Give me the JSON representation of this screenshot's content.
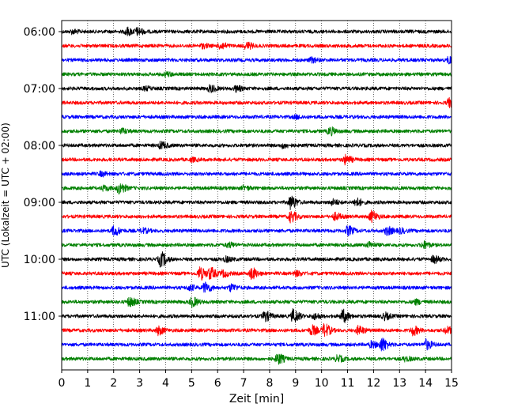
{
  "chart_data": {
    "type": "line",
    "subtype": "helicorder",
    "xlabel": "Zeit  [min]",
    "ylabel": "UTC (Lokalzeit = UTC + 02:00)",
    "x_ticks": [
      0,
      1,
      2,
      3,
      4,
      5,
      6,
      7,
      8,
      9,
      10,
      11,
      12,
      13,
      14,
      15
    ],
    "xlim": [
      0,
      15
    ],
    "grid": "vertical dotted",
    "y_tick_labels": [
      "06:00",
      "07:00",
      "08:00",
      "09:00",
      "10:00",
      "11:00"
    ],
    "trace_minutes": 15,
    "trace_colors": [
      "#000000",
      "#ff0000",
      "#0000ff",
      "#008000"
    ],
    "traces": [
      {
        "start": "06:00",
        "color": "#000000",
        "events": [
          [
            2.5,
            0.5
          ],
          [
            2.9,
            0.45
          ],
          [
            0.4,
            0.25
          ]
        ]
      },
      {
        "start": "06:15",
        "color": "#ff0000",
        "events": [
          [
            6.1,
            0.45
          ],
          [
            7.1,
            0.45
          ],
          [
            5.4,
            0.25
          ]
        ]
      },
      {
        "start": "06:30",
        "color": "#0000ff",
        "events": [
          [
            9.6,
            0.3
          ],
          [
            14.9,
            0.5
          ]
        ]
      },
      {
        "start": "06:45",
        "color": "#008000",
        "events": [
          [
            4.0,
            0.25
          ]
        ]
      },
      {
        "start": "07:00",
        "color": "#000000",
        "events": [
          [
            5.7,
            0.45
          ],
          [
            6.7,
            0.35
          ],
          [
            3.2,
            0.2
          ]
        ]
      },
      {
        "start": "07:15",
        "color": "#ff0000",
        "events": [
          [
            14.9,
            0.55
          ]
        ]
      },
      {
        "start": "07:30",
        "color": "#0000ff",
        "events": [
          [
            9.0,
            0.2
          ]
        ]
      },
      {
        "start": "07:45",
        "color": "#008000",
        "events": [
          [
            10.3,
            0.5
          ],
          [
            2.3,
            0.3
          ]
        ]
      },
      {
        "start": "08:00",
        "color": "#000000",
        "events": [
          [
            3.8,
            0.45
          ],
          [
            8.5,
            0.3
          ]
        ]
      },
      {
        "start": "08:15",
        "color": "#ff0000",
        "events": [
          [
            10.9,
            0.6
          ],
          [
            5.0,
            0.2
          ]
        ]
      },
      {
        "start": "08:30",
        "color": "#0000ff",
        "events": [
          [
            1.5,
            0.25
          ]
        ]
      },
      {
        "start": "08:45",
        "color": "#008000",
        "events": [
          [
            2.2,
            0.8
          ],
          [
            1.6,
            0.3
          ],
          [
            7.0,
            0.25
          ]
        ]
      },
      {
        "start": "09:00",
        "color": "#000000",
        "events": [
          [
            8.8,
            0.9
          ],
          [
            11.3,
            0.55
          ],
          [
            10.4,
            0.35
          ]
        ]
      },
      {
        "start": "09:15",
        "color": "#ff0000",
        "events": [
          [
            8.8,
            0.75
          ],
          [
            11.9,
            0.75
          ],
          [
            10.5,
            0.45
          ]
        ]
      },
      {
        "start": "09:30",
        "color": "#0000ff",
        "events": [
          [
            2.0,
            0.6
          ],
          [
            11.0,
            0.6
          ],
          [
            12.5,
            0.55
          ],
          [
            13.0,
            0.3
          ],
          [
            3.1,
            0.3
          ]
        ]
      },
      {
        "start": "09:45",
        "color": "#008000",
        "events": [
          [
            13.9,
            0.45
          ],
          [
            11.8,
            0.35
          ],
          [
            6.4,
            0.3
          ]
        ]
      },
      {
        "start": "10:00",
        "color": "#000000",
        "events": [
          [
            3.8,
            1.0
          ],
          [
            14.3,
            0.45
          ],
          [
            6.3,
            0.3
          ]
        ]
      },
      {
        "start": "10:15",
        "color": "#ff0000",
        "events": [
          [
            5.3,
            0.85
          ],
          [
            5.7,
            0.75
          ],
          [
            7.3,
            0.75
          ],
          [
            6.2,
            0.4
          ],
          [
            9.0,
            0.3
          ]
        ]
      },
      {
        "start": "10:30",
        "color": "#0000ff",
        "events": [
          [
            5.5,
            0.7
          ],
          [
            6.5,
            0.45
          ],
          [
            4.9,
            0.35
          ]
        ]
      },
      {
        "start": "10:45",
        "color": "#008000",
        "events": [
          [
            2.6,
            0.6
          ],
          [
            5.0,
            0.6
          ],
          [
            13.6,
            0.3
          ]
        ]
      },
      {
        "start": "11:00",
        "color": "#000000",
        "events": [
          [
            7.8,
            0.65
          ],
          [
            8.9,
            0.9
          ],
          [
            10.8,
            0.85
          ],
          [
            12.4,
            0.45
          ],
          [
            9.7,
            0.35
          ]
        ]
      },
      {
        "start": "11:15",
        "color": "#ff0000",
        "events": [
          [
            10.1,
            0.85
          ],
          [
            9.6,
            0.65
          ],
          [
            11.4,
            0.55
          ],
          [
            3.7,
            0.55
          ],
          [
            13.5,
            0.6
          ],
          [
            14.8,
            0.45
          ]
        ]
      },
      {
        "start": "11:30",
        "color": "#0000ff",
        "events": [
          [
            12.3,
            0.9
          ],
          [
            14.0,
            0.65
          ],
          [
            11.9,
            0.4
          ]
        ]
      },
      {
        "start": "11:45",
        "color": "#008000",
        "events": [
          [
            8.3,
            0.75
          ],
          [
            10.6,
            0.4
          ],
          [
            13.2,
            0.25
          ]
        ]
      }
    ]
  }
}
